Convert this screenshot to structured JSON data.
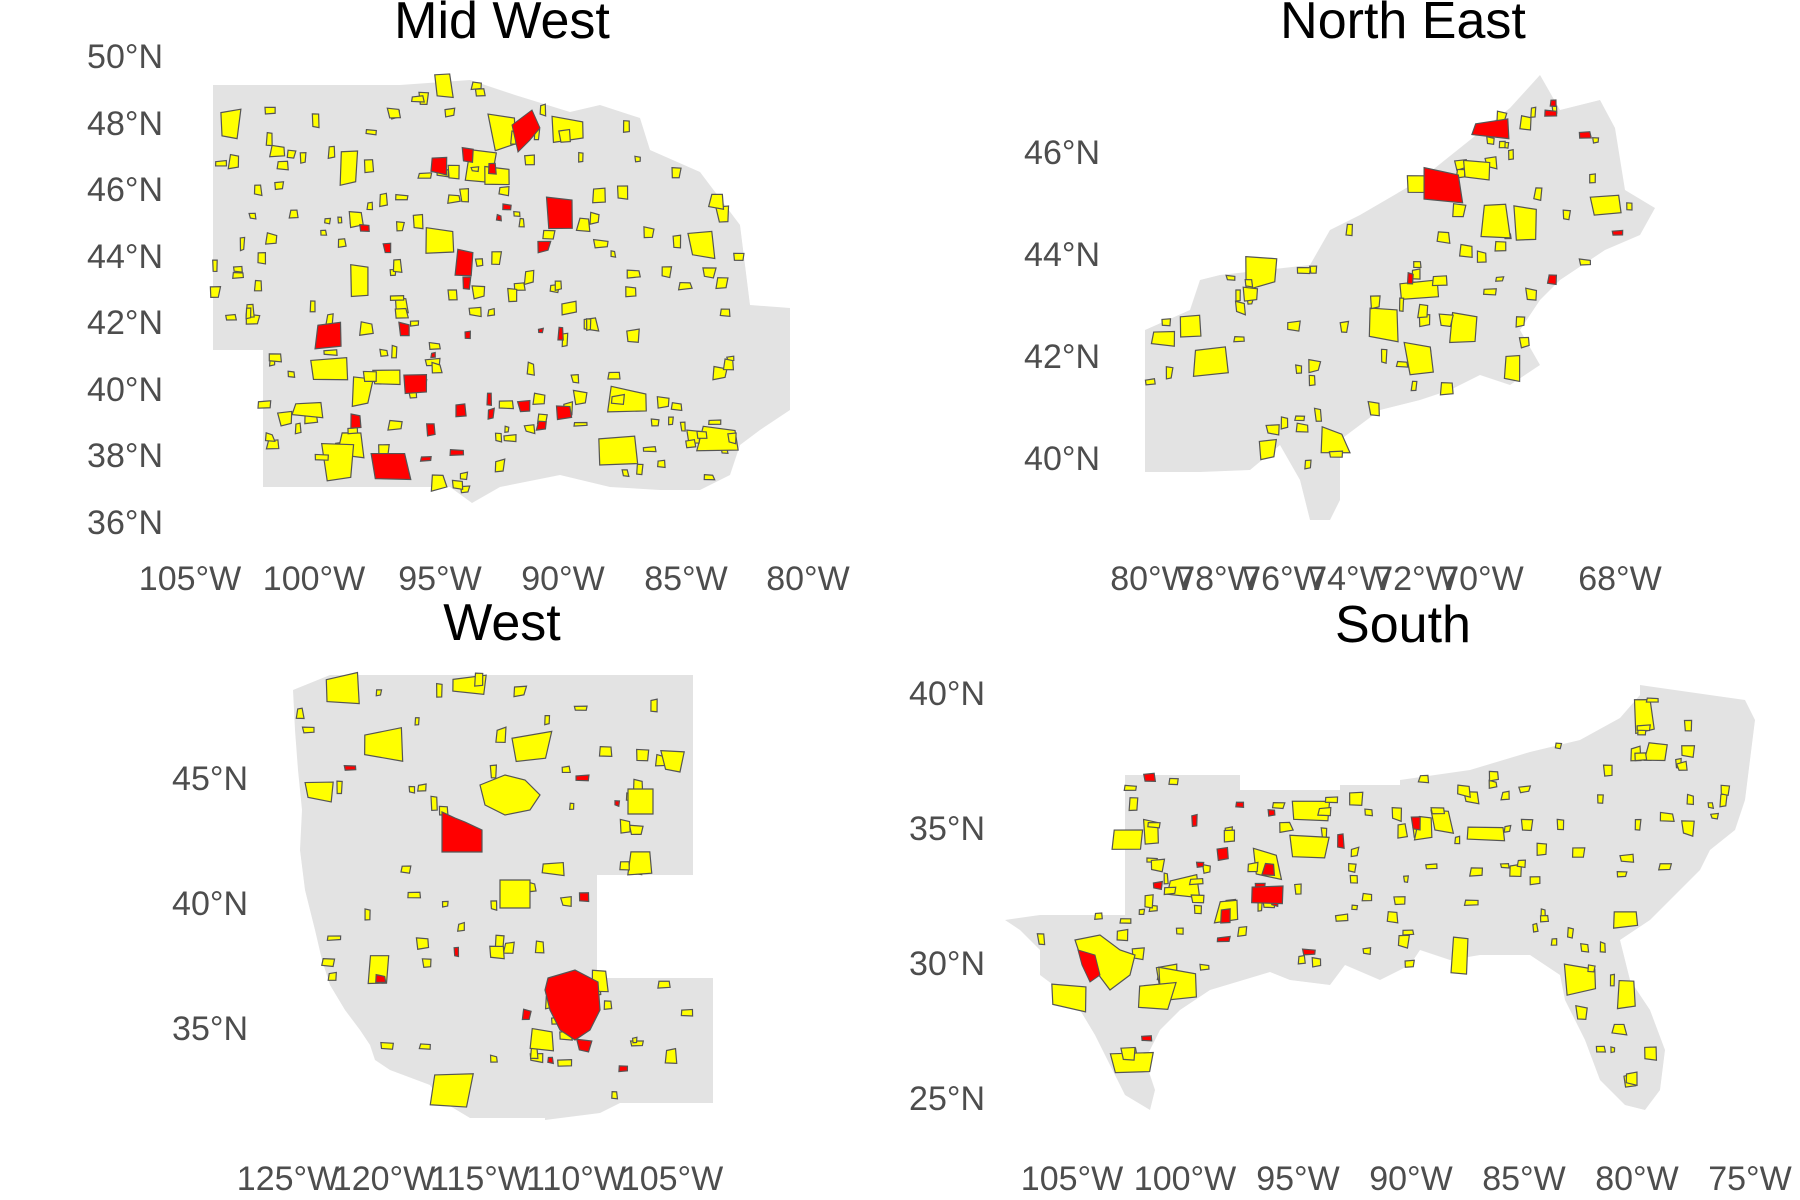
{
  "colors": {
    "background": "#ffffff",
    "land": "#e3e3e3",
    "area_selected": "#ffff00",
    "area_highlighted": "#ff0000",
    "area_border": "#555555",
    "tick_text": "#4d4d4d",
    "title_text": "#000000"
  },
  "chart_data": [
    {
      "type": "map",
      "title": "Mid West",
      "x_ticks": [
        "105°W",
        "100°W",
        "95°W",
        "90°W",
        "85°W",
        "80°W"
      ],
      "y_ticks": [
        "50°N",
        "48°N",
        "46°N",
        "44°N",
        "42°N",
        "40°N",
        "38°N",
        "36°N"
      ],
      "lon_range": [
        -104.5,
        -80.5
      ],
      "lat_range": [
        36,
        50
      ],
      "polygon_fills": [
        "yellow",
        "red"
      ]
    },
    {
      "type": "map",
      "title": "North East",
      "x_ticks": [
        "80°W",
        "78°W",
        "76°W",
        "74°W",
        "72°W",
        "70°W",
        "68°W"
      ],
      "y_ticks": [
        "46°N",
        "44°N",
        "42°N",
        "40°N"
      ],
      "lon_range": [
        -80.5,
        -66.9
      ],
      "lat_range": [
        39.5,
        47.5
      ],
      "polygon_fills": [
        "yellow",
        "red"
      ]
    },
    {
      "type": "map",
      "title": "West",
      "x_ticks": [
        "125°W",
        "120°W",
        "115°W",
        "110°W",
        "105°W"
      ],
      "y_ticks": [
        "45°N",
        "40°N",
        "35°N"
      ],
      "lon_range": [
        -124.7,
        -102.0
      ],
      "lat_range": [
        31.3,
        49.0
      ],
      "polygon_fills": [
        "yellow",
        "red"
      ]
    },
    {
      "type": "map",
      "title": "South",
      "x_ticks": [
        "105°W",
        "100°W",
        "95°W",
        "90°W",
        "85°W",
        "80°W",
        "75°W"
      ],
      "y_ticks": [
        "40°N",
        "35°N",
        "30°N",
        "25°N"
      ],
      "lon_range": [
        -106.6,
        -75.0
      ],
      "lat_range": [
        24.5,
        39.5
      ],
      "polygon_fills": [
        "yellow",
        "red"
      ]
    }
  ]
}
